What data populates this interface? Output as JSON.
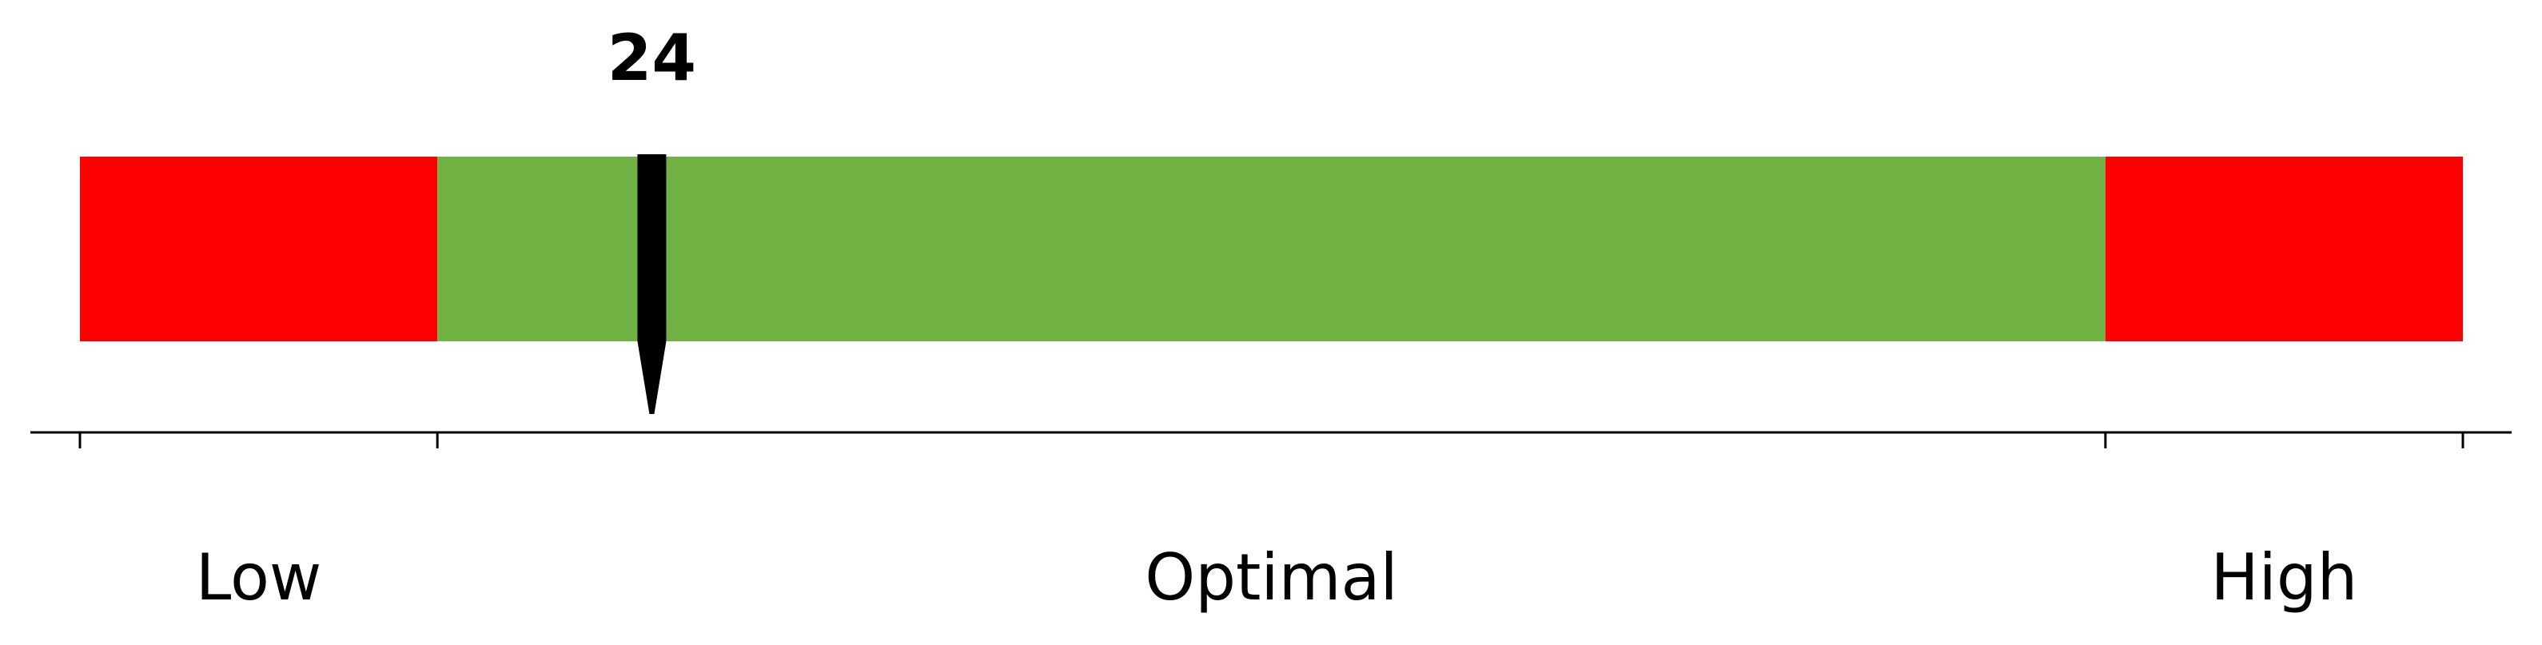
{
  "chart_data": {
    "type": "bullet-gauge",
    "value": 24,
    "value_label": "24",
    "xlim": [
      0,
      100
    ],
    "zones": [
      {
        "label": "Low",
        "start": 0,
        "end": 15,
        "color": "#ff0000"
      },
      {
        "label": "Optimal",
        "start": 15,
        "end": 85,
        "color": "#70b244"
      },
      {
        "label": "High",
        "start": 85,
        "end": 100,
        "color": "#ff0000"
      }
    ],
    "ticks": [
      0,
      15,
      85,
      100
    ],
    "marker_color": "#000000",
    "axis_color": "#000000"
  }
}
